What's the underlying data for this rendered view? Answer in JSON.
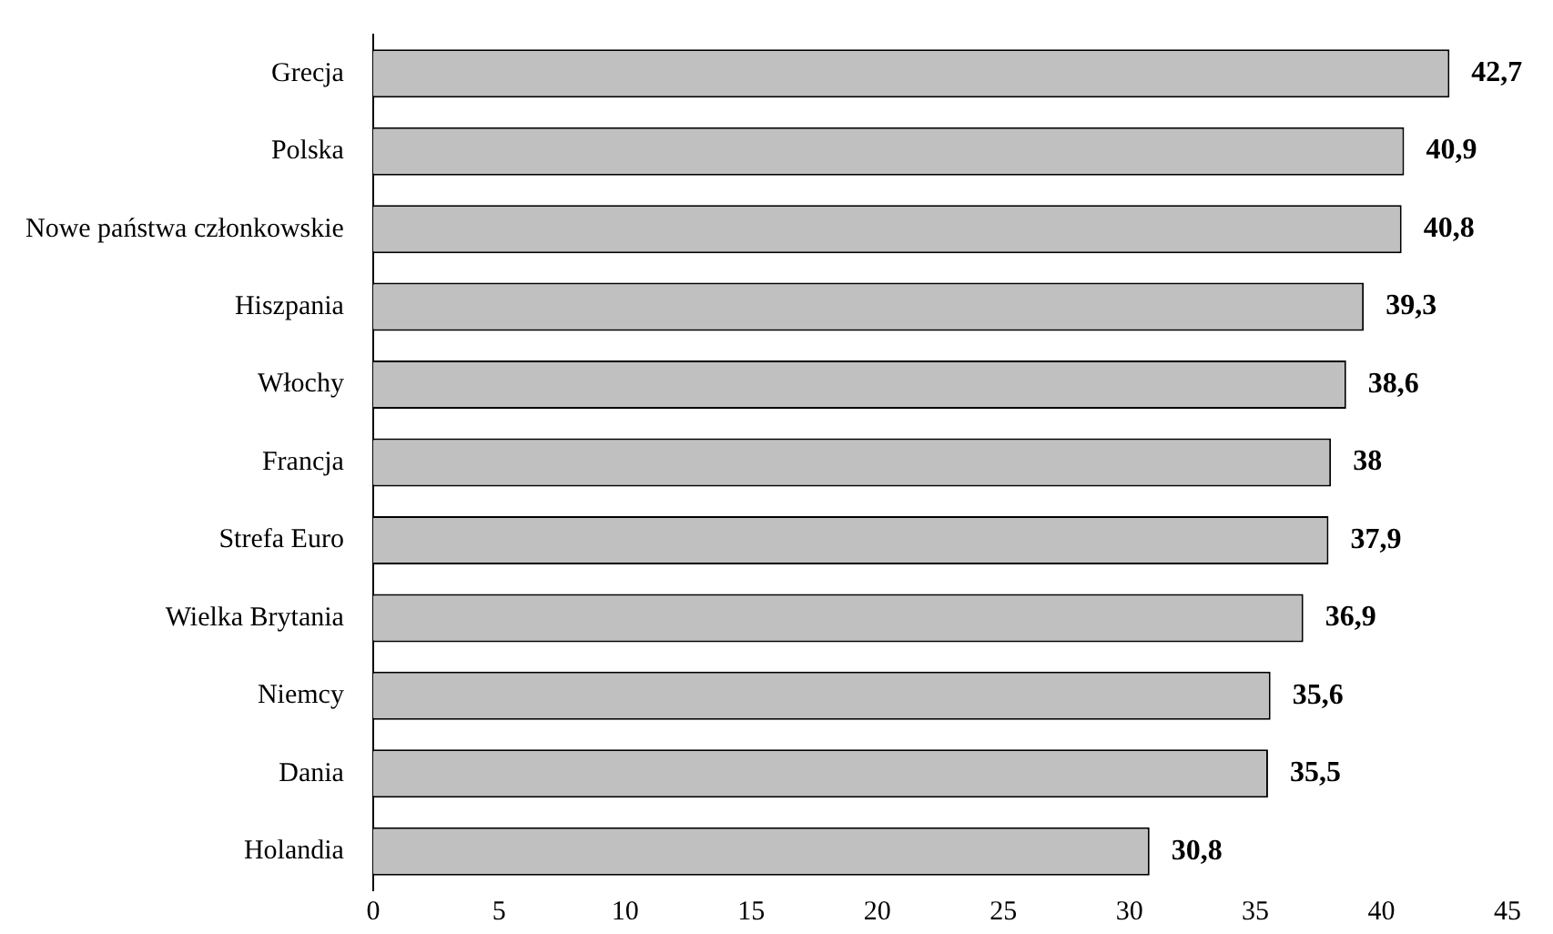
{
  "chart_data": {
    "type": "bar",
    "orientation": "horizontal",
    "categories": [
      "Grecja",
      "Polska",
      "Nowe państwa członkowskie",
      "Hiszpania",
      "Włochy",
      "Francja",
      "Strefa Euro",
      "Wielka Brytania",
      "Niemcy",
      "Dania",
      "Holandia"
    ],
    "values": [
      42.7,
      40.9,
      40.8,
      39.3,
      38.6,
      38,
      37.9,
      36.9,
      35.6,
      35.5,
      30.8
    ],
    "color": "#c0c0c0",
    "xlim": [
      0,
      45
    ],
    "xticks": [
      0,
      5,
      10,
      15,
      20,
      25,
      30,
      35,
      40,
      45
    ],
    "grid": false,
    "value_labels": [
      "42,7",
      "40,9",
      "40,8",
      "39,3",
      "38,6",
      "38",
      "37,9",
      "36,9",
      "35,6",
      "35,5",
      "30,8"
    ]
  }
}
